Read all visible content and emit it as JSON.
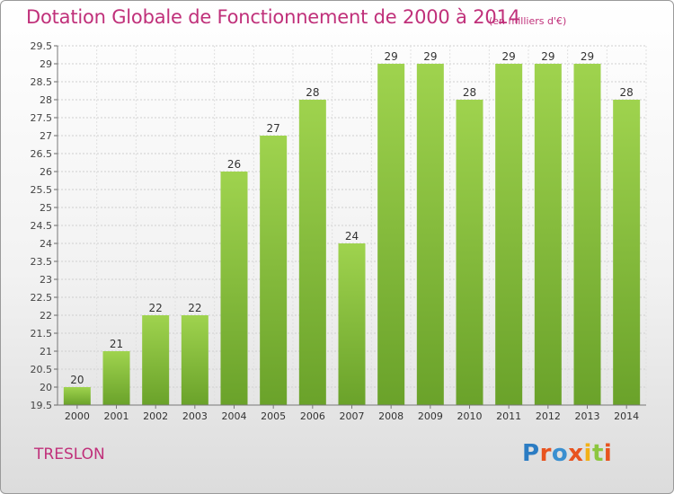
{
  "header": {
    "title": "Dotation Globale de Fonctionnement de 2000 à 2014",
    "unit": "(en milliers d'€)"
  },
  "footer": {
    "commune": "TRESLON",
    "brand": "Proxiti"
  },
  "colors": {
    "title": "#c0307a",
    "bar_light": "#9fd34e",
    "bar_dark": "#6aa22a",
    "brand_letters": [
      "#2b7cc3",
      "#e8531f",
      "#3a8fd0",
      "#e8531f",
      "#f2b117",
      "#8cc63f",
      "#e8531f"
    ]
  },
  "chart_data": {
    "type": "bar",
    "categories": [
      "2000",
      "2001",
      "2002",
      "2003",
      "2004",
      "2005",
      "2006",
      "2007",
      "2008",
      "2009",
      "2010",
      "2011",
      "2012",
      "2013",
      "2014"
    ],
    "values": [
      20,
      21,
      22,
      22,
      26,
      27,
      28,
      24,
      29,
      29,
      28,
      29,
      29,
      29,
      28
    ],
    "data_labels": [
      "20",
      "21",
      "22",
      "22",
      "26",
      "27",
      "28",
      "24",
      "29",
      "29",
      "28",
      "29",
      "29",
      "29",
      "28"
    ],
    "ylim": [
      19.5,
      29.5
    ],
    "yticks": [
      "19.5",
      "20",
      "20.5",
      "21",
      "21.5",
      "22",
      "22.5",
      "23",
      "23.5",
      "24",
      "24.5",
      "25",
      "25.5",
      "26",
      "26.5",
      "27",
      "27.5",
      "28",
      "28.5",
      "29",
      "29.5"
    ],
    "grid": true,
    "legend": "none"
  }
}
